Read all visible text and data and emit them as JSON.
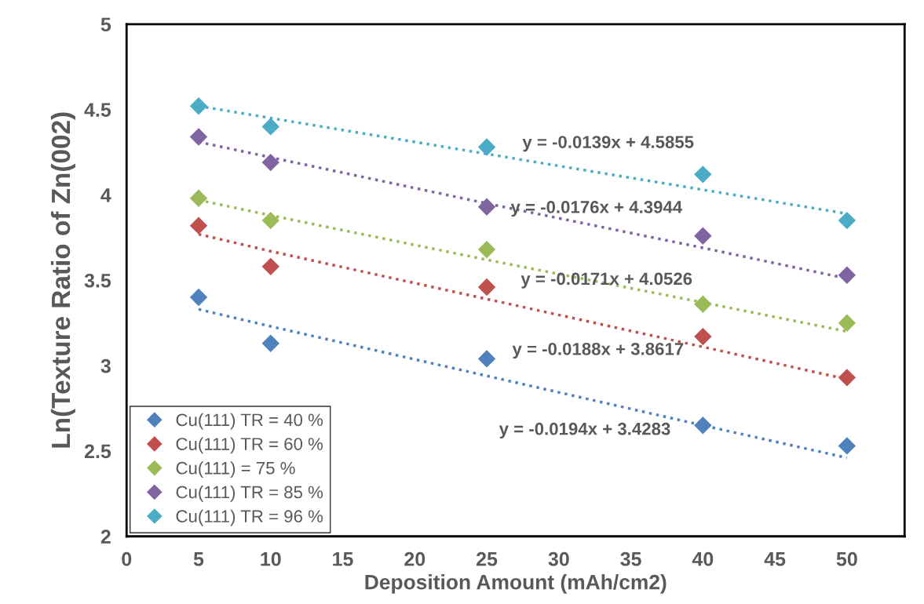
{
  "chart_data": {
    "type": "scatter",
    "xlabel": "Deposition Amount (mAh/cm2)",
    "ylabel": "Ln(Texture Ratio of Zn(002)",
    "x": [
      5,
      10,
      25,
      40,
      50
    ],
    "xlim": [
      0,
      54
    ],
    "xticks": [
      0,
      5,
      10,
      15,
      20,
      25,
      30,
      35,
      40,
      45,
      50
    ],
    "ylim": [
      2,
      5
    ],
    "yticks": [
      2,
      2.5,
      3,
      3.5,
      4,
      4.5,
      5
    ],
    "grid": false,
    "legend": "bottom left",
    "marker": "diamond",
    "series": [
      {
        "name": "Cu(111) TR = 40 %",
        "color": "#4f81bd",
        "values": [
          3.4,
          3.13,
          3.04,
          2.65,
          2.53
        ]
      },
      {
        "name": "Cu(111) TR = 60 %",
        "color": "#c0504d",
        "values": [
          3.82,
          3.58,
          3.46,
          3.17,
          2.93
        ]
      },
      {
        "name": "Cu(111) = 75 %",
        "color": "#9bbb59",
        "values": [
          3.98,
          3.85,
          3.68,
          3.36,
          3.25
        ]
      },
      {
        "name": "Cu(111) TR = 85 %",
        "color": "#8064a2",
        "values": [
          4.34,
          4.19,
          3.93,
          3.76,
          3.53
        ]
      },
      {
        "name": "Cu(111) TR = 96 %",
        "color": "#4bacc6",
        "values": [
          4.52,
          4.4,
          4.28,
          4.12,
          3.85
        ]
      },
      {
        "type": "line",
        "line_style": "dotted",
        "marker": "none",
        "color": "#4f81bd",
        "values": [
          3.33,
          3.23,
          2.94,
          2.65,
          2.46
        ]
      },
      {
        "type": "line",
        "line_style": "dotted",
        "marker": "none",
        "color": "#c0504d",
        "values": [
          3.77,
          3.67,
          3.39,
          3.11,
          2.92
        ]
      },
      {
        "type": "line",
        "line_style": "dotted",
        "marker": "none",
        "color": "#9bbb59",
        "values": [
          3.97,
          3.88,
          3.62,
          3.37,
          3.2
        ]
      },
      {
        "type": "line",
        "line_style": "dotted",
        "marker": "none",
        "color": "#8064a2",
        "values": [
          4.31,
          4.22,
          3.95,
          3.69,
          3.51
        ]
      },
      {
        "type": "line",
        "line_style": "dotted",
        "marker": "none",
        "color": "#4bacc6",
        "values": [
          4.52,
          4.45,
          4.24,
          4.03,
          3.89
        ]
      }
    ],
    "annotations": [
      "y = -0.0139x + 4.5855",
      "y = -0.0176x + 4.3944",
      "y = -0.0171x + 4.0526",
      "y = -0.0188x + 3.8617",
      "y = -0.0194x + 3.4283"
    ]
  }
}
